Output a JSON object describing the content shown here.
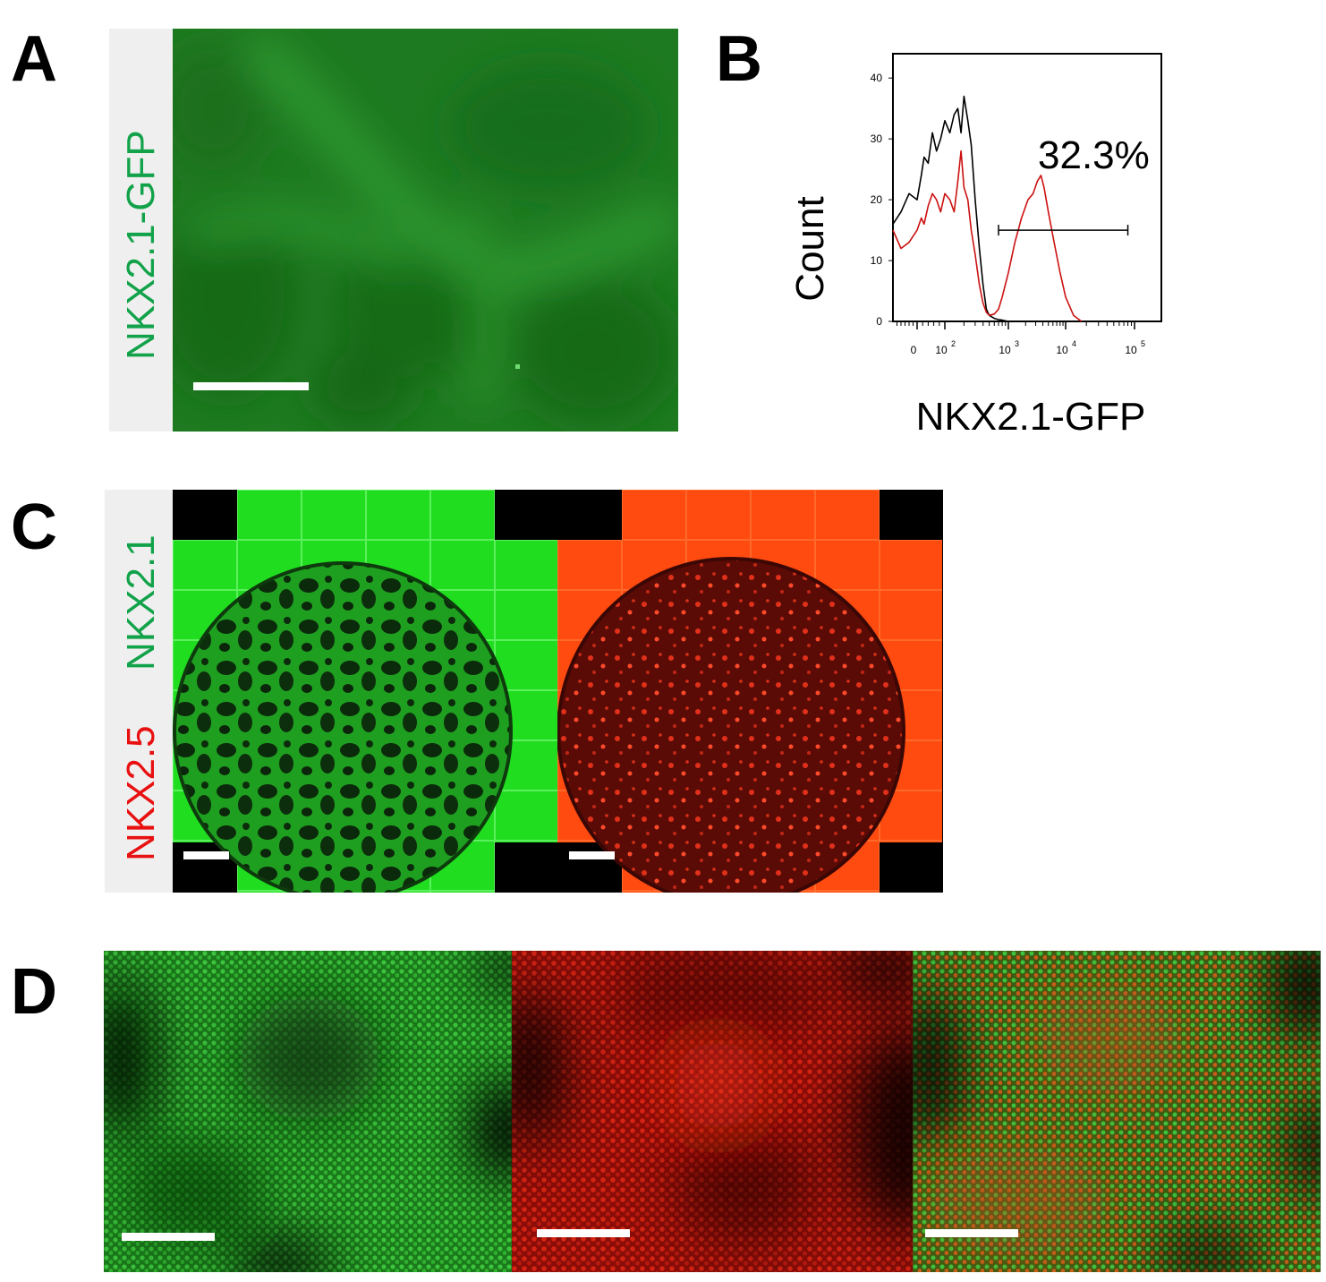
{
  "panels": {
    "a": {
      "letter": "A",
      "channel_label": "NKX2.1-GFP",
      "channel_color": "#12a24a"
    },
    "b": {
      "letter": "B"
    },
    "c": {
      "letter": "C",
      "label_green": "NKX2.1",
      "label_red": "NKX2.5",
      "green_color": "#12a24a",
      "red_color": "#e81010"
    },
    "d": {
      "letter": "D"
    }
  },
  "chart_data": {
    "type": "line",
    "ylabel": "Count",
    "xlabel": "NKX2.1-GFP",
    "x_scale": "biexponential",
    "x_tick_labels": [
      {
        "base": "0",
        "exp": ""
      },
      {
        "base": "10",
        "exp": "2"
      },
      {
        "base": "10",
        "exp": "3"
      },
      {
        "base": "10",
        "exp": "4"
      },
      {
        "base": "10",
        "exp": "5"
      }
    ],
    "y_ticks": [
      0,
      10,
      20,
      30,
      40
    ],
    "ylim": [
      0,
      44
    ],
    "gate": {
      "percent_label": "32.3%",
      "x_start": 700,
      "x_end": 80000,
      "y": 15
    },
    "series": [
      {
        "color": "#000000",
        "x": [
          -60,
          -40,
          -20,
          0,
          15,
          25,
          40,
          55,
          70,
          85,
          100,
          120,
          140,
          160,
          180,
          200,
          230,
          260,
          300,
          350,
          400,
          450,
          500,
          600,
          700,
          800,
          1000
        ],
        "y": [
          16,
          18,
          21,
          20,
          24,
          27,
          26,
          31,
          28,
          30,
          33,
          31,
          34,
          35,
          31,
          37,
          33,
          29,
          20,
          12,
          6,
          2,
          1,
          0.5,
          0.3,
          0.2,
          0
        ]
      },
      {
        "color": "#cc1111",
        "x": [
          -60,
          -40,
          -20,
          0,
          15,
          25,
          40,
          55,
          70,
          85,
          100,
          120,
          140,
          160,
          180,
          200,
          230,
          260,
          300,
          350,
          400,
          450,
          500,
          600,
          700,
          800,
          1000,
          1300,
          1700,
          2200,
          2700,
          3200,
          3700,
          4200,
          5000,
          6000,
          8000,
          10000,
          13000,
          17000
        ],
        "y": [
          15,
          12,
          13,
          15,
          17,
          16,
          19,
          21,
          20,
          18,
          21,
          20,
          18,
          23,
          28,
          22,
          20,
          15,
          11,
          6,
          3,
          1.5,
          1,
          1.2,
          2,
          4,
          8,
          13,
          17,
          20,
          21,
          23,
          24,
          22,
          18,
          14,
          8,
          4,
          1,
          0
        ]
      }
    ]
  }
}
